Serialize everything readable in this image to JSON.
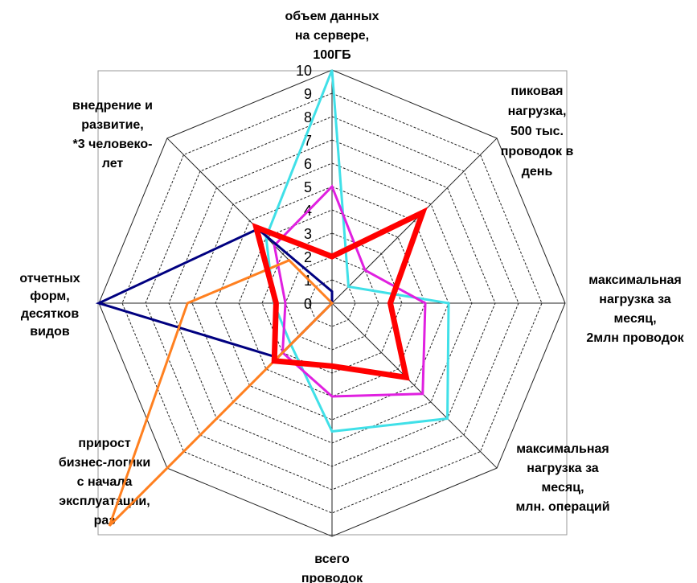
{
  "chart_data": {
    "type": "radar",
    "categories": [
      "объем данных\nна сервере,\n100ГБ",
      "пиковая\nнагрузка,\n500 тыс.\nпроводок в\nдень",
      "максимальная\nнагрузка за\nмесяц,\n2млн проводок",
      "максимальная\nнагрузка за\nмесяц,\nмлн. операций",
      "всего\nпроводок",
      "прирост\nбизнес-логики\nс начала\nэксплуатации,\nраз",
      "отчетных\nформ,\nдесятков\nвидов",
      "внедрение и\nразвитие,\n*3 человеко-\nлет"
    ],
    "ylim": [
      0,
      10
    ],
    "yticks": [
      0,
      1,
      2,
      3,
      4,
      5,
      6,
      7,
      8,
      9,
      10
    ],
    "grid": true,
    "series": [
      {
        "color": "#40e0e8",
        "values": [
          10,
          1,
          5,
          7,
          5.5,
          2.5,
          2.5,
          4
        ]
      },
      {
        "color": "#e020e0",
        "values": [
          5,
          2,
          4,
          5.5,
          4,
          3,
          2,
          3.5
        ]
      },
      {
        "color": "#000080",
        "values": [
          0.5,
          0,
          0,
          0,
          0,
          3.3,
          10,
          4.5
        ]
      },
      {
        "color": "#ff8020",
        "values": [
          0,
          0,
          0,
          0,
          0,
          13.5,
          6.2,
          2.6
        ]
      },
      {
        "color": "#ff0000",
        "values": [
          2,
          5.5,
          2.5,
          4.5,
          2.7,
          3.5,
          2.4,
          4.6
        ]
      }
    ]
  }
}
